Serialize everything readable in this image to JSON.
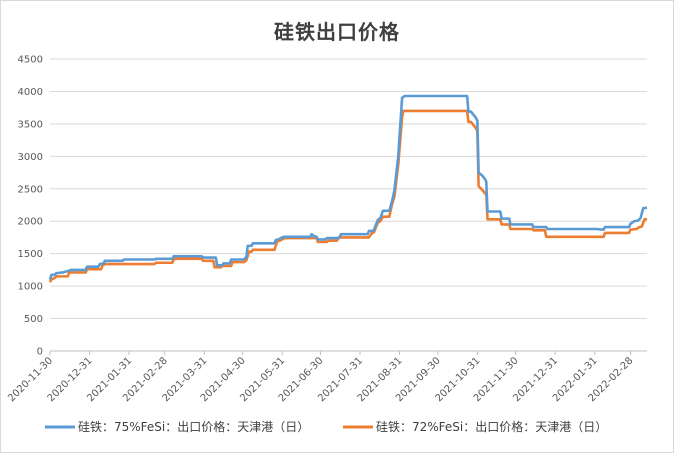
{
  "chart_data": {
    "type": "line",
    "title": "硅铁出口价格",
    "xlabel": "",
    "ylabel": "",
    "ylim": [
      0,
      4500
    ],
    "yticks": [
      0,
      500,
      1000,
      1500,
      2000,
      2500,
      3000,
      3500,
      4000,
      4500
    ],
    "xlim": [
      "2020-11-30",
      "2022-03-13"
    ],
    "xticks": [
      "2020-11-30",
      "2020-12-31",
      "2021-01-31",
      "2021-02-28",
      "2021-03-31",
      "2021-04-30",
      "2021-05-31",
      "2021-06-30",
      "2021-07-31",
      "2021-08-31",
      "2021-09-30",
      "2021-10-31",
      "2021-11-30",
      "2021-12-31",
      "2022-01-31",
      "2022-02-28"
    ],
    "grid": true,
    "legend_position": "bottom",
    "series": [
      {
        "name": "硅铁：75%FeSi：出口价格：天津港（日）",
        "color": "#5b9bd5",
        "points": [
          [
            "2020-11-30",
            1100
          ],
          [
            "2020-12-01",
            1170
          ],
          [
            "2020-12-04",
            1180
          ],
          [
            "2020-12-05",
            1200
          ],
          [
            "2020-12-10",
            1210
          ],
          [
            "2020-12-17",
            1250
          ],
          [
            "2020-12-28",
            1250
          ],
          [
            "2020-12-29",
            1300
          ],
          [
            "2021-01-07",
            1300
          ],
          [
            "2021-01-08",
            1340
          ],
          [
            "2021-01-11",
            1350
          ],
          [
            "2021-01-12",
            1390
          ],
          [
            "2021-01-26",
            1390
          ],
          [
            "2021-01-27",
            1410
          ],
          [
            "2021-02-20",
            1410
          ],
          [
            "2021-02-21",
            1420
          ],
          [
            "2021-03-06",
            1420
          ],
          [
            "2021-03-07",
            1460
          ],
          [
            "2021-03-29",
            1460
          ],
          [
            "2021-03-30",
            1440
          ],
          [
            "2021-04-09",
            1440
          ],
          [
            "2021-04-10",
            1320
          ],
          [
            "2021-04-14",
            1320
          ],
          [
            "2021-04-15",
            1350
          ],
          [
            "2021-04-20",
            1350
          ],
          [
            "2021-04-21",
            1410
          ],
          [
            "2021-05-01",
            1410
          ],
          [
            "2021-05-03",
            1450
          ],
          [
            "2021-05-04",
            1620
          ],
          [
            "2021-05-07",
            1620
          ],
          [
            "2021-05-08",
            1660
          ],
          [
            "2021-05-25",
            1660
          ],
          [
            "2021-05-26",
            1710
          ],
          [
            "2021-05-28",
            1720
          ],
          [
            "2021-06-01",
            1760
          ],
          [
            "2021-06-22",
            1760
          ],
          [
            "2021-06-23",
            1800
          ],
          [
            "2021-06-25",
            1770
          ],
          [
            "2021-06-27",
            1760
          ],
          [
            "2021-06-28",
            1720
          ],
          [
            "2021-07-04",
            1720
          ],
          [
            "2021-07-05",
            1740
          ],
          [
            "2021-07-15",
            1740
          ],
          [
            "2021-07-16",
            1800
          ],
          [
            "2021-08-06",
            1800
          ],
          [
            "2021-08-07",
            1850
          ],
          [
            "2021-08-10",
            1850
          ],
          [
            "2021-08-11",
            1870
          ],
          [
            "2021-08-14",
            2020
          ],
          [
            "2021-08-16",
            2050
          ],
          [
            "2021-08-18",
            2160
          ],
          [
            "2021-08-23",
            2160
          ],
          [
            "2021-08-25",
            2300
          ],
          [
            "2021-08-26",
            2380
          ],
          [
            "2021-08-27",
            2480
          ],
          [
            "2021-08-30",
            3000
          ],
          [
            "2021-09-02",
            3900
          ],
          [
            "2021-09-04",
            3930
          ],
          [
            "2021-10-23",
            3930
          ],
          [
            "2021-10-24",
            3690
          ],
          [
            "2021-10-26",
            3690
          ],
          [
            "2021-10-30",
            3590
          ],
          [
            "2021-10-31",
            3550
          ],
          [
            "2021-11-01",
            2750
          ],
          [
            "2021-11-04",
            2700
          ],
          [
            "2021-11-06",
            2650
          ],
          [
            "2021-11-07",
            2610
          ],
          [
            "2021-11-08",
            2150
          ],
          [
            "2021-11-18",
            2150
          ],
          [
            "2021-11-19",
            2040
          ],
          [
            "2021-11-25",
            2040
          ],
          [
            "2021-11-26",
            1950
          ],
          [
            "2021-12-13",
            1950
          ],
          [
            "2021-12-14",
            1910
          ],
          [
            "2021-12-24",
            1910
          ],
          [
            "2021-12-25",
            1880
          ],
          [
            "2022-01-28",
            1880
          ],
          [
            "2022-02-01",
            1880
          ],
          [
            "2022-02-07",
            1870
          ],
          [
            "2022-02-08",
            1910
          ],
          [
            "2022-02-27",
            1910
          ],
          [
            "2022-02-28",
            1960
          ],
          [
            "2022-03-03",
            2000
          ],
          [
            "2022-03-06",
            2010
          ],
          [
            "2022-03-08",
            2050
          ],
          [
            "2022-03-10",
            2200
          ],
          [
            "2022-03-13",
            2210
          ]
        ]
      },
      {
        "name": "硅铁：72%FeSi：出口价格：天津港（日）",
        "color": "#ed7d31",
        "points": [
          [
            "2020-11-30",
            1060
          ],
          [
            "2020-12-01",
            1100
          ],
          [
            "2020-12-04",
            1130
          ],
          [
            "2020-12-05",
            1150
          ],
          [
            "2020-12-14",
            1150
          ],
          [
            "2020-12-15",
            1210
          ],
          [
            "2020-12-28",
            1210
          ],
          [
            "2020-12-29",
            1260
          ],
          [
            "2021-01-09",
            1260
          ],
          [
            "2021-01-10",
            1310
          ],
          [
            "2021-01-12",
            1340
          ],
          [
            "2021-02-20",
            1340
          ],
          [
            "2021-02-21",
            1360
          ],
          [
            "2021-03-06",
            1360
          ],
          [
            "2021-03-07",
            1420
          ],
          [
            "2021-03-29",
            1420
          ],
          [
            "2021-03-30",
            1390
          ],
          [
            "2021-04-07",
            1390
          ],
          [
            "2021-04-08",
            1290
          ],
          [
            "2021-04-13",
            1290
          ],
          [
            "2021-04-14",
            1310
          ],
          [
            "2021-04-21",
            1310
          ],
          [
            "2021-04-22",
            1370
          ],
          [
            "2021-05-01",
            1370
          ],
          [
            "2021-05-03",
            1400
          ],
          [
            "2021-05-05",
            1530
          ],
          [
            "2021-05-07",
            1530
          ],
          [
            "2021-05-08",
            1560
          ],
          [
            "2021-05-25",
            1560
          ],
          [
            "2021-05-27",
            1690
          ],
          [
            "2021-05-29",
            1700
          ],
          [
            "2021-06-02",
            1740
          ],
          [
            "2021-06-27",
            1740
          ],
          [
            "2021-06-28",
            1680
          ],
          [
            "2021-07-05",
            1680
          ],
          [
            "2021-07-06",
            1700
          ],
          [
            "2021-07-13",
            1700
          ],
          [
            "2021-07-14",
            1750
          ],
          [
            "2021-08-07",
            1750
          ],
          [
            "2021-08-09",
            1810
          ],
          [
            "2021-08-11",
            1830
          ],
          [
            "2021-08-14",
            1980
          ],
          [
            "2021-08-16",
            2000
          ],
          [
            "2021-08-18",
            2070
          ],
          [
            "2021-08-23",
            2070
          ],
          [
            "2021-08-25",
            2250
          ],
          [
            "2021-08-27",
            2380
          ],
          [
            "2021-08-30",
            2870
          ],
          [
            "2021-09-02",
            3600
          ],
          [
            "2021-09-03",
            3700
          ],
          [
            "2021-10-23",
            3700
          ],
          [
            "2021-10-24",
            3530
          ],
          [
            "2021-10-26",
            3530
          ],
          [
            "2021-10-30",
            3430
          ],
          [
            "2021-10-31",
            3390
          ],
          [
            "2021-11-01",
            2540
          ],
          [
            "2021-11-04",
            2480
          ],
          [
            "2021-11-06",
            2430
          ],
          [
            "2021-11-07",
            2410
          ],
          [
            "2021-11-08",
            2030
          ],
          [
            "2021-11-18",
            2030
          ],
          [
            "2021-11-19",
            1950
          ],
          [
            "2021-11-25",
            1950
          ],
          [
            "2021-11-26",
            1880
          ],
          [
            "2021-12-13",
            1880
          ],
          [
            "2021-12-14",
            1860
          ],
          [
            "2021-12-23",
            1860
          ],
          [
            "2021-12-24",
            1760
          ],
          [
            "2022-02-07",
            1760
          ],
          [
            "2022-02-08",
            1820
          ],
          [
            "2022-02-27",
            1820
          ],
          [
            "2022-02-28",
            1870
          ],
          [
            "2022-03-05",
            1880
          ],
          [
            "2022-03-06",
            1900
          ],
          [
            "2022-03-09",
            1920
          ],
          [
            "2022-03-11",
            2030
          ],
          [
            "2022-03-13",
            2030
          ]
        ]
      }
    ]
  }
}
